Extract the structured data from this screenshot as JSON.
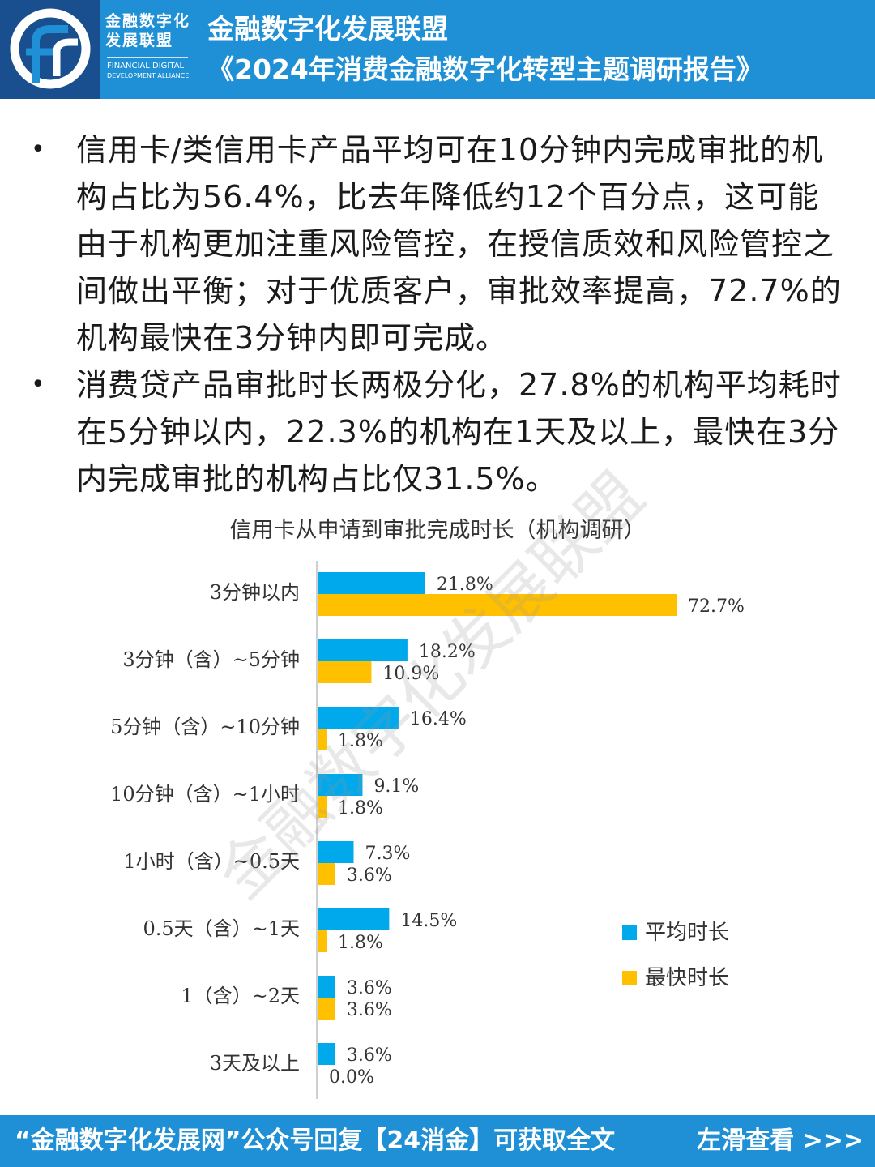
{
  "header": {
    "logo_cn": "金融数字化发展联盟",
    "logo_en_line1": "FINANCIAL DIGITAL",
    "logo_en_line2": "DEVELOPMENT ALLIANCE",
    "title": "金融数字化发展联盟",
    "subtitle": "《2024年消费金融数字化转型主题调研报告》",
    "colors": {
      "bar": "#1f8fd6",
      "logo_bg": "#1a4f8f"
    }
  },
  "bullets": [
    "信用卡/类信用卡产品平均可在10分钟内完成审批的机构占比为56.4%，比去年降低约12个百分点，这可能由于机构更加注重风险管控，在授信质效和风险管控之间做出平衡；对于优质客户，审批效率提高，72.7%的机构最快在3分钟内即可完成。",
    "消费贷产品审批时长两极分化，27.8%的机构平均耗时在5分钟以内，22.3%的机构在1天及以上，最快在3分内完成审批的机构占比仅31.5%。"
  ],
  "chart_data": {
    "type": "bar",
    "orientation": "horizontal",
    "title": "信用卡从申请到审批完成时长（机构调研）",
    "categories": [
      "3分钟以内",
      "3分钟（含）~5分钟",
      "5分钟（含）~10分钟",
      "10分钟（含）~1小时",
      "1小时（含）~0.5天",
      "0.5天（含）~1天",
      "1（含）~2天",
      "3天及以上"
    ],
    "series": [
      {
        "name": "平均时长",
        "color": "#00a8ec",
        "values": [
          21.8,
          18.2,
          16.4,
          9.1,
          7.3,
          14.5,
          3.6,
          3.6
        ],
        "labels": [
          "21.8%",
          "18.2%",
          "16.4%",
          "9.1%",
          "7.3%",
          "14.5%",
          "3.6%",
          "3.6%"
        ]
      },
      {
        "name": "最快时长",
        "color": "#ffc000",
        "values": [
          72.7,
          10.9,
          1.8,
          1.8,
          3.6,
          1.8,
          3.6,
          0.0
        ],
        "labels": [
          "72.7%",
          "10.9%",
          "1.8%",
          "1.8%",
          "3.6%",
          "1.8%",
          "3.6%",
          "0.0%"
        ]
      }
    ],
    "xlim": [
      0,
      100
    ],
    "grid": false,
    "legend_position": "right"
  },
  "watermark": "金融数字化发展联盟",
  "footer": {
    "text": "“金融数字化发展网”公众号回复【24消金】可获取全文",
    "link": "左滑查看 >>>"
  }
}
